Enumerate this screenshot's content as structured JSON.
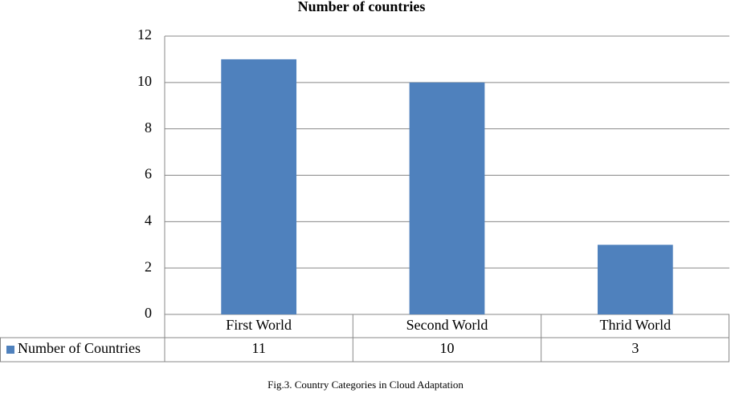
{
  "chart_data": {
    "type": "bar",
    "title": "Number of countries",
    "caption": "Fig.3. Country Categories in Cloud Adaptation",
    "categories": [
      "First World",
      "Second World",
      "Thrid World"
    ],
    "series": [
      {
        "name": "Number of Countries",
        "color": "#4f81bd",
        "values": [
          11,
          10,
          3
        ]
      }
    ],
    "ylim": [
      0,
      12
    ],
    "yticks": [
      0,
      2,
      4,
      6,
      8,
      10,
      12
    ],
    "grid": true,
    "data_table": true
  }
}
